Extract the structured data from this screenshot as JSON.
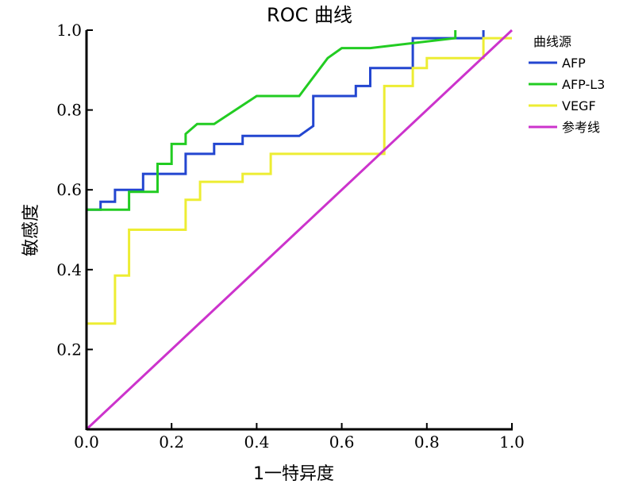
{
  "chart_data": {
    "type": "line",
    "title": "ROC 曲线",
    "xlabel": "1一特异度",
    "ylabel": "敏感度",
    "xlim": [
      0,
      1
    ],
    "ylim": [
      0,
      1
    ],
    "x_ticks": [
      "0.0",
      "0.2",
      "0.4",
      "0.6",
      "0.8",
      "1.0"
    ],
    "y_ticks": [
      "0.2",
      "0.4",
      "0.6",
      "0.8",
      "1.0"
    ],
    "legend_title": "曲线源",
    "legend_position": "right",
    "series": [
      {
        "name": "AFP",
        "color": "#2346d0",
        "interpolation": "step",
        "points": [
          [
            0,
            0.55
          ],
          [
            0.033,
            0.55
          ],
          [
            0.033,
            0.57
          ],
          [
            0.067,
            0.57
          ],
          [
            0.067,
            0.6
          ],
          [
            0.133,
            0.6
          ],
          [
            0.133,
            0.64
          ],
          [
            0.233,
            0.64
          ],
          [
            0.233,
            0.69
          ],
          [
            0.3,
            0.69
          ],
          [
            0.3,
            0.715
          ],
          [
            0.367,
            0.715
          ],
          [
            0.367,
            0.735
          ],
          [
            0.5,
            0.735
          ],
          [
            0.533,
            0.76
          ],
          [
            0.533,
            0.835
          ],
          [
            0.633,
            0.835
          ],
          [
            0.633,
            0.86
          ],
          [
            0.667,
            0.86
          ],
          [
            0.667,
            0.905
          ],
          [
            0.767,
            0.905
          ],
          [
            0.767,
            0.98
          ],
          [
            0.933,
            0.98
          ],
          [
            0.933,
            1.0
          ]
        ]
      },
      {
        "name": "AFP-L3",
        "color": "#22cc22",
        "interpolation": "linear",
        "points": [
          [
            0,
            0.55
          ],
          [
            0.1,
            0.55
          ],
          [
            0.1,
            0.595
          ],
          [
            0.167,
            0.595
          ],
          [
            0.167,
            0.665
          ],
          [
            0.2,
            0.665
          ],
          [
            0.2,
            0.715
          ],
          [
            0.233,
            0.715
          ],
          [
            0.233,
            0.74
          ],
          [
            0.26,
            0.765
          ],
          [
            0.3,
            0.765
          ],
          [
            0.4,
            0.835
          ],
          [
            0.5,
            0.835
          ],
          [
            0.567,
            0.93
          ],
          [
            0.6,
            0.955
          ],
          [
            0.667,
            0.955
          ],
          [
            0.867,
            0.98
          ],
          [
            0.867,
            1.0
          ]
        ]
      },
      {
        "name": "VEGF",
        "color": "#eded33",
        "interpolation": "step",
        "points": [
          [
            0,
            0
          ],
          [
            0,
            0.265
          ],
          [
            0.067,
            0.265
          ],
          [
            0.067,
            0.385
          ],
          [
            0.1,
            0.385
          ],
          [
            0.1,
            0.5
          ],
          [
            0.233,
            0.5
          ],
          [
            0.233,
            0.575
          ],
          [
            0.267,
            0.575
          ],
          [
            0.267,
            0.62
          ],
          [
            0.367,
            0.62
          ],
          [
            0.367,
            0.64
          ],
          [
            0.433,
            0.64
          ],
          [
            0.433,
            0.69
          ],
          [
            0.7,
            0.69
          ],
          [
            0.7,
            0.86
          ],
          [
            0.767,
            0.86
          ],
          [
            0.767,
            0.905
          ],
          [
            0.8,
            0.905
          ],
          [
            0.8,
            0.93
          ],
          [
            0.933,
            0.93
          ],
          [
            0.933,
            0.98
          ],
          [
            1.0,
            0.98
          ]
        ]
      },
      {
        "name": "参考线",
        "color": "#cc33cc",
        "interpolation": "linear",
        "points": [
          [
            0,
            0
          ],
          [
            1,
            1
          ]
        ]
      }
    ]
  }
}
